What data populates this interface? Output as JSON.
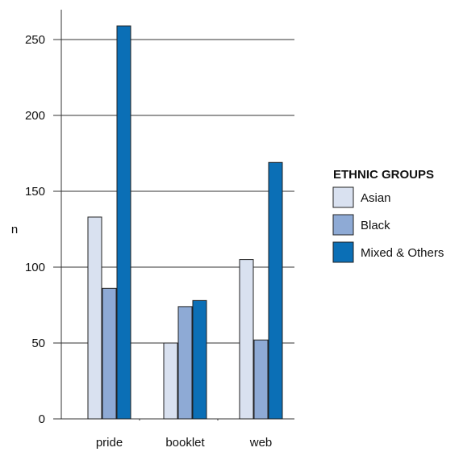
{
  "chart_data": {
    "type": "bar",
    "categories": [
      "pride",
      "booklet",
      "web"
    ],
    "series": [
      {
        "name": "Asian",
        "values": [
          133,
          50,
          105
        ],
        "color": "#d9e1f0"
      },
      {
        "name": "Black",
        "values": [
          86,
          74,
          52
        ],
        "color": "#8eaad5"
      },
      {
        "name": "Mixed & Others",
        "values": [
          259,
          78,
          169
        ],
        "color": "#0b6fb6"
      }
    ],
    "yticks": [
      0,
      50,
      100,
      150,
      200,
      250
    ],
    "ylabel": "n",
    "ylim": [
      0,
      270
    ],
    "grid": true,
    "legend_title": "ETHNIC GROUPS",
    "legend_position": "right"
  }
}
